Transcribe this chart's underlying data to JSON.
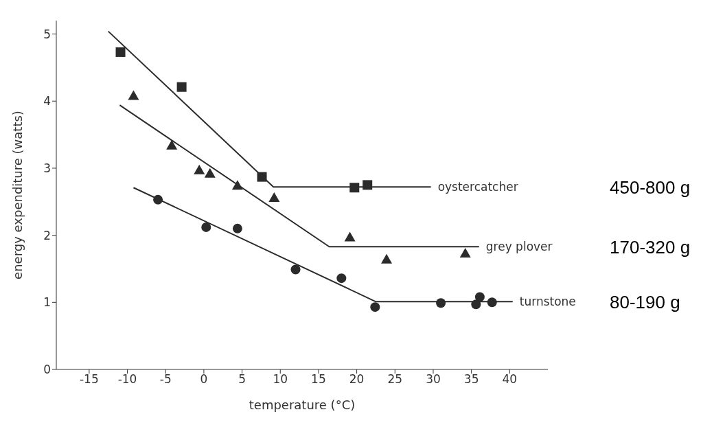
{
  "chart_data": {
    "type": "scatter",
    "xlabel": "temperature (°C)",
    "ylabel": "energy expenditure (watts)",
    "xlim": [
      -19.3,
      45
    ],
    "xticks": [
      -15,
      -10,
      -5,
      0,
      5,
      10,
      15,
      20,
      25,
      30,
      35,
      40
    ],
    "ylim": [
      0,
      5.2
    ],
    "yticks": [
      0,
      1,
      2,
      3,
      4,
      5
    ],
    "grid": false,
    "legend": false,
    "series": [
      {
        "marker": "square",
        "color": "#2b2b2b",
        "x": [
          -10.9,
          -2.9,
          7.6,
          19.7,
          21.4
        ],
        "values": [
          4.73,
          4.21,
          2.87,
          2.71,
          2.75
        ]
      },
      {
        "marker": "triangle",
        "color": "#2b2b2b",
        "x": [
          -9.2,
          -4.2,
          -0.6,
          0.8,
          4.4,
          9.2,
          19.1,
          23.9,
          34.2
        ],
        "values": [
          4.08,
          3.34,
          2.97,
          2.92,
          2.74,
          2.56,
          1.97,
          1.64,
          1.73
        ]
      },
      {
        "marker": "circle",
        "color": "#2b2b2b",
        "x": [
          -6.0,
          0.3,
          4.4,
          12.0,
          18.0,
          22.4,
          31.0,
          35.6,
          36.1,
          37.7
        ],
        "values": [
          2.53,
          2.12,
          2.1,
          1.49,
          1.36,
          0.93,
          0.99,
          0.97,
          1.08,
          1.0
        ]
      },
      {
        "type": "line",
        "name": "oystercatcher",
        "marker": "none",
        "color": "#2b2b2b",
        "x": [
          -12.5,
          9.1,
          29.7
        ],
        "values": [
          5.04,
          2.72,
          2.72
        ]
      },
      {
        "type": "line",
        "name": "grey plover",
        "marker": "none",
        "color": "#2b2b2b",
        "x": [
          -11.0,
          16.4,
          36.0
        ],
        "values": [
          3.94,
          1.83,
          1.83
        ]
      },
      {
        "type": "line",
        "name": "turnstone",
        "marker": "none",
        "color": "#2b2b2b",
        "x": [
          -9.2,
          22.5,
          40.4
        ],
        "values": [
          2.71,
          1.01,
          1.01
        ]
      }
    ],
    "annotations": [
      "450-800 g",
      "170-320 g",
      "80-190 g"
    ]
  }
}
